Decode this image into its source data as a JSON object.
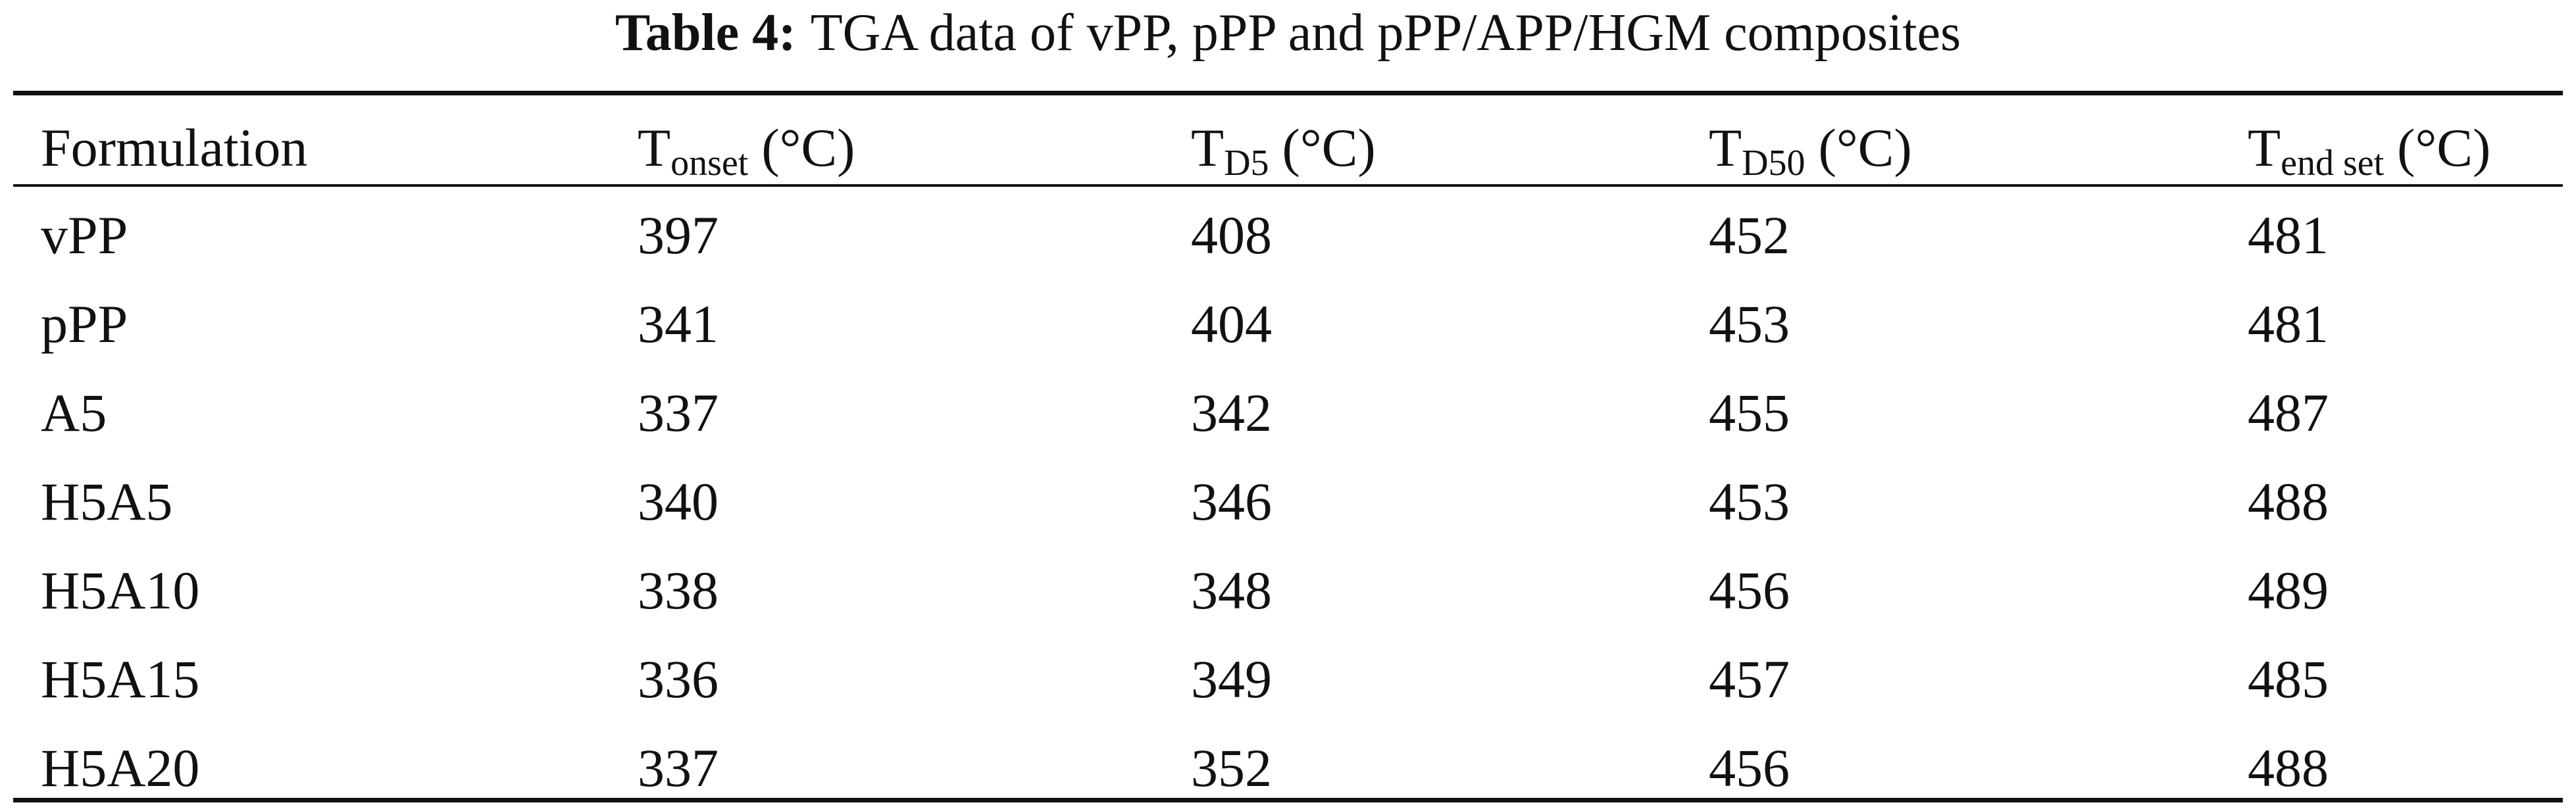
{
  "title": {
    "label": "Table 4:",
    "text": "TGA data of vPP, pPP and pPP/APP/HGM composites"
  },
  "table": {
    "header": [
      {
        "text": "Formulation"
      },
      {
        "text": "T",
        "sub": "onset",
        "unit": "(°C)"
      },
      {
        "text": "T",
        "sub": "D5",
        "unit": "(°C)"
      },
      {
        "text": "T",
        "sub": "D50",
        "unit": "(°C)"
      },
      {
        "text": "T",
        "sub": "end set",
        "unit": "(°C)"
      }
    ],
    "rows": [
      [
        "vPP",
        397,
        408,
        452,
        481
      ],
      [
        "pPP",
        341,
        404,
        453,
        481
      ],
      [
        "A5",
        337,
        342,
        455,
        487
      ],
      [
        "H5A5",
        340,
        346,
        453,
        488
      ],
      [
        "H5A10",
        338,
        348,
        456,
        489
      ],
      [
        "H5A15",
        336,
        349,
        457,
        485
      ],
      [
        "H5A20",
        337,
        352,
        456,
        488
      ]
    ]
  }
}
